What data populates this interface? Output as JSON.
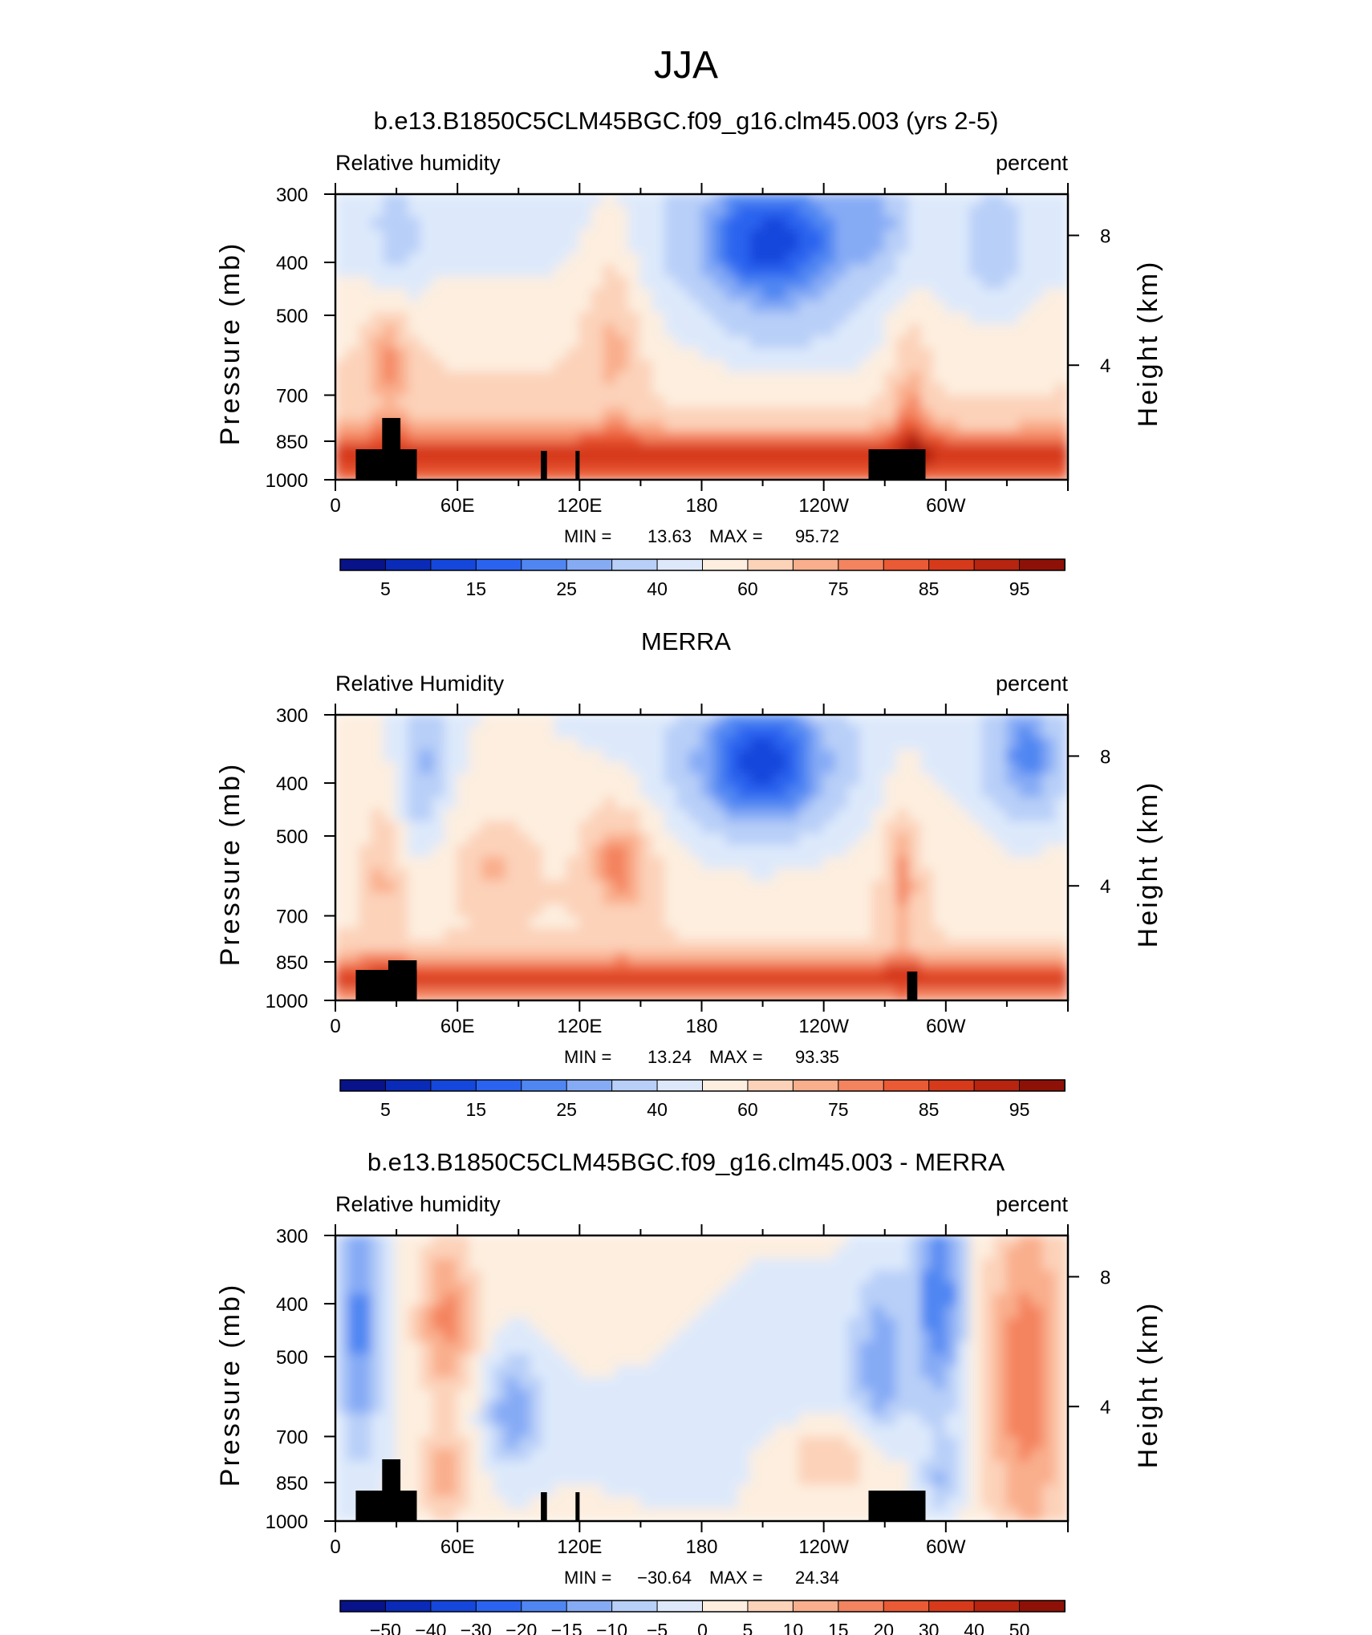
{
  "figure_title": "JJA",
  "chart_data": [
    {
      "type": "heatmap",
      "title": "b.e13.B1850C5CLM45BGC.f09_g16.clm45.003 (yrs 2-5)",
      "left_label": "Relative humidity",
      "right_label": "percent",
      "ylabel": "Pressure (mb)",
      "ylabel_right": "Height (km)",
      "yticks": [
        "300",
        "400",
        "500",
        "700",
        "850",
        "1000"
      ],
      "yticks_right": [
        "8",
        "4"
      ],
      "xticks": [
        "0",
        "60E",
        "120E",
        "180",
        "120W",
        "60W"
      ],
      "stats": {
        "min_label": "MIN =",
        "min": "13.63",
        "max_label": "MAX =",
        "max": "95.72"
      },
      "colorbar_labels": [
        "5",
        "15",
        "25",
        "40",
        "60",
        "75",
        "85",
        "95"
      ],
      "colorbar_colors": [
        "#08138a",
        "#0a2bb8",
        "#1547dc",
        "#2a63ef",
        "#4f86f2",
        "#86abf5",
        "#b8cff8",
        "#dde9fb",
        "#fdeedf",
        "#fcd2b9",
        "#f9ae8c",
        "#f4835f",
        "#ea5a34",
        "#d73a1b",
        "#b72410",
        "#8e1107"
      ],
      "field": {
        "value_range": [
          13.63,
          95.72
        ],
        "mask_longitudes": [
          [
            10,
            40
          ],
          [
            101,
            104
          ],
          [
            118,
            120
          ],
          [
            262,
            290
          ]
        ]
      }
    },
    {
      "type": "heatmap",
      "title": "MERRA",
      "left_label": "Relative Humidity",
      "right_label": "percent",
      "ylabel": "Pressure (mb)",
      "ylabel_right": "Height (km)",
      "yticks": [
        "300",
        "400",
        "500",
        "700",
        "850",
        "1000"
      ],
      "yticks_right": [
        "8",
        "4"
      ],
      "xticks": [
        "0",
        "60E",
        "120E",
        "180",
        "120W",
        "60W"
      ],
      "stats": {
        "min_label": "MIN =",
        "min": "13.24",
        "max_label": "MAX =",
        "max": "93.35"
      },
      "colorbar_labels": [
        "5",
        "15",
        "25",
        "40",
        "60",
        "75",
        "85",
        "95"
      ],
      "colorbar_colors": [
        "#08138a",
        "#0a2bb8",
        "#1547dc",
        "#2a63ef",
        "#4f86f2",
        "#86abf5",
        "#b8cff8",
        "#dde9fb",
        "#fdeedf",
        "#fcd2b9",
        "#f9ae8c",
        "#f4835f",
        "#ea5a34",
        "#d73a1b",
        "#b72410",
        "#8e1107"
      ],
      "field": {
        "value_range": [
          13.24,
          93.35
        ],
        "mask_longitudes": [
          [
            10,
            40
          ],
          [
            281,
            286
          ]
        ]
      }
    },
    {
      "type": "heatmap",
      "title": "b.e13.B1850C5CLM45BGC.f09_g16.clm45.003 - MERRA",
      "left_label": "Relative humidity",
      "right_label": "percent",
      "ylabel": "Pressure (mb)",
      "ylabel_right": "Height (km)",
      "yticks": [
        "300",
        "400",
        "500",
        "700",
        "850",
        "1000"
      ],
      "yticks_right": [
        "8",
        "4"
      ],
      "xticks": [
        "0",
        "60E",
        "120E",
        "180",
        "120W",
        "60W"
      ],
      "stats": {
        "min_label": "MIN =",
        "min": "−30.64",
        "max_label": "MAX =",
        "max": "24.34"
      },
      "colorbar_labels": [
        "−50",
        "−40",
        "−30",
        "−20",
        "−15",
        "−10",
        "−5",
        "0",
        "5",
        "10",
        "15",
        "20",
        "30",
        "40",
        "50"
      ],
      "colorbar_colors": [
        "#08138a",
        "#0a2bb8",
        "#1547dc",
        "#2a63ef",
        "#4f86f2",
        "#86abf5",
        "#b8cff8",
        "#dde9fb",
        "#fdeedf",
        "#fcd2b9",
        "#f9ae8c",
        "#f4835f",
        "#ea5a34",
        "#d73a1b",
        "#b72410",
        "#8e1107"
      ],
      "field": {
        "value_range": [
          -30.64,
          24.34
        ],
        "mask_longitudes": [
          [
            10,
            40
          ],
          [
            101,
            104
          ],
          [
            118,
            120
          ],
          [
            262,
            290
          ]
        ]
      }
    }
  ]
}
